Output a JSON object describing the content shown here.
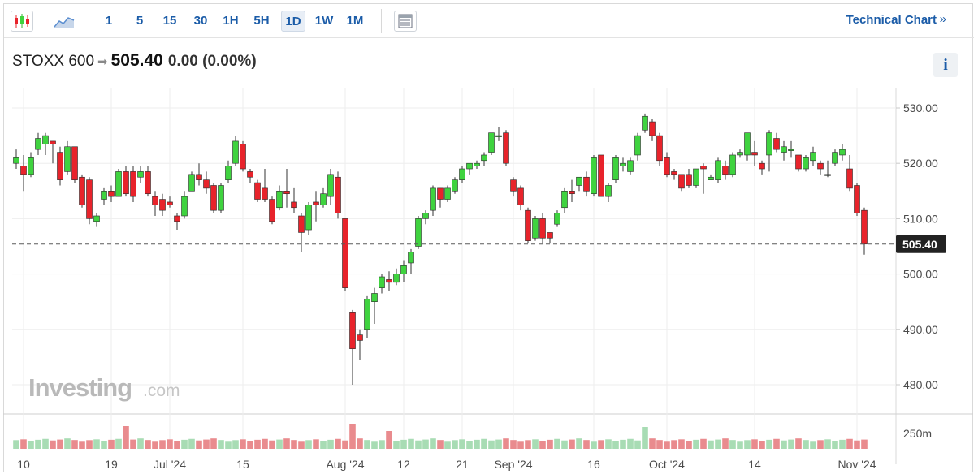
{
  "toolbar": {
    "icons": [
      "candlestick-icon",
      "area-chart-icon",
      "table-view-icon"
    ],
    "intervals": [
      "1",
      "5",
      "15",
      "30",
      "1H",
      "5H",
      "1D",
      "1W",
      "1M"
    ],
    "active_interval": "1D",
    "technical_chart_label": "Technical Chart",
    "technical_chart_arrow": "»"
  },
  "quote": {
    "name": "STOXX 600",
    "arrow": "➡",
    "price": "505.40",
    "change": "0.00 (0.00%)"
  },
  "info_label": "i",
  "watermark": {
    "brand": "Investing",
    "suffix": ".com"
  },
  "colors": {
    "up": "#3fd33f",
    "down": "#e8232b",
    "vol_up": "#a8dcb4",
    "vol_down": "#e98b8e"
  },
  "chart_data": {
    "type": "candlestick",
    "y_axis": {
      "ticks": [
        "530.00",
        "520.00",
        "510.00",
        "500.00",
        "490.00",
        "480.00"
      ],
      "range": [
        477,
        533
      ]
    },
    "last_price_label": "505.40",
    "last_price": 505.4,
    "volume_label": "250m",
    "x_labels": [
      "10",
      "19",
      "Jul '24",
      "15",
      "Aug '24",
      "12",
      "21",
      "Sep '24",
      "16",
      "Oct '24",
      "14",
      "Nov '24"
    ],
    "x_label_candle_index": [
      1,
      13,
      21,
      31,
      45,
      53,
      61,
      68,
      79,
      89,
      101,
      115
    ],
    "candles": [
      [
        520.0,
        521.0,
        522.5,
        519.0
      ],
      [
        519.5,
        518.0,
        521.5,
        515.0
      ],
      [
        518.0,
        521.0,
        522.0,
        517.5
      ],
      [
        522.5,
        524.5,
        525.5,
        521.5
      ],
      [
        523.5,
        525.0,
        525.5,
        521.5
      ],
      [
        524.0,
        523.5,
        524.0,
        520.0
      ],
      [
        522.0,
        517.0,
        523.0,
        516.0
      ],
      [
        518.5,
        523.0,
        524.0,
        518.0
      ],
      [
        523.0,
        517.0,
        523.0,
        516.5
      ],
      [
        517.5,
        512.5,
        518.0,
        512.0
      ],
      [
        517.0,
        510.0,
        517.5,
        509.0
      ],
      [
        509.5,
        510.5,
        511.0,
        508.5
      ],
      [
        513.5,
        515.0,
        515.5,
        512.5
      ],
      [
        515.0,
        514.0,
        516.0,
        513.0
      ],
      [
        514.0,
        518.5,
        519.0,
        514.0
      ],
      [
        518.5,
        514.5,
        519.5,
        514.0
      ],
      [
        518.5,
        514.0,
        519.5,
        513.0
      ],
      [
        517.5,
        518.5,
        519.5,
        516.5
      ],
      [
        518.5,
        514.5,
        519.5,
        514.0
      ],
      [
        514.0,
        512.5,
        515.0,
        510.5
      ],
      [
        513.5,
        511.5,
        514.5,
        510.5
      ],
      [
        513.0,
        512.5,
        514.0,
        512.0
      ],
      [
        510.5,
        509.5,
        511.0,
        508.0
      ],
      [
        510.5,
        514.0,
        515.0,
        510.0
      ],
      [
        515.0,
        518.0,
        518.5,
        515.0
      ],
      [
        518.0,
        517.0,
        520.0,
        516.0
      ],
      [
        517.0,
        515.5,
        518.5,
        514.5
      ],
      [
        516.0,
        511.5,
        516.5,
        511.0
      ],
      [
        511.5,
        516.0,
        516.5,
        511.0
      ],
      [
        517.0,
        519.5,
        520.5,
        516.5
      ],
      [
        520.0,
        524.0,
        525.0,
        519.5
      ],
      [
        523.5,
        519.0,
        524.0,
        518.5
      ],
      [
        518.5,
        517.5,
        519.0,
        516.5
      ],
      [
        516.5,
        513.5,
        517.0,
        513.0
      ],
      [
        515.5,
        513.5,
        519.0,
        513.0
      ],
      [
        513.5,
        509.5,
        514.0,
        509.0
      ],
      [
        512.0,
        515.0,
        516.0,
        511.5
      ],
      [
        515.0,
        514.5,
        519.0,
        512.0
      ],
      [
        513.0,
        512.0,
        515.5,
        511.0
      ],
      [
        510.5,
        507.5,
        511.0,
        504.0
      ],
      [
        508.0,
        512.5,
        513.0,
        507.0
      ],
      [
        513.0,
        512.5,
        515.0,
        509.5
      ],
      [
        512.5,
        514.5,
        515.5,
        512.0
      ],
      [
        514.0,
        518.0,
        519.0,
        512.5
      ],
      [
        517.5,
        511.0,
        518.5,
        510.0
      ],
      [
        510.0,
        497.5,
        510.0,
        497.0
      ],
      [
        493.0,
        486.5,
        493.5,
        480.0
      ],
      [
        489.0,
        488.0,
        490.0,
        484.5
      ],
      [
        490.0,
        495.5,
        496.0,
        488.5
      ],
      [
        495.0,
        496.5,
        497.5,
        491.0
      ],
      [
        497.5,
        499.5,
        500.0,
        496.5
      ],
      [
        499.0,
        498.5,
        500.5,
        497.0
      ],
      [
        498.5,
        500.0,
        501.0,
        498.0
      ],
      [
        500.0,
        501.5,
        502.5,
        498.5
      ],
      [
        502.0,
        504.0,
        504.5,
        500.0
      ],
      [
        505.0,
        510.0,
        510.5,
        504.5
      ],
      [
        510.0,
        511.0,
        511.5,
        509.0
      ],
      [
        511.5,
        515.5,
        516.0,
        510.5
      ],
      [
        515.5,
        513.5,
        515.5,
        512.0
      ],
      [
        513.5,
        515.5,
        516.0,
        513.0
      ],
      [
        515.0,
        517.0,
        517.5,
        514.5
      ],
      [
        517.0,
        519.0,
        519.5,
        516.5
      ],
      [
        519.0,
        520.0,
        520.0,
        518.0
      ],
      [
        519.5,
        520.0,
        520.5,
        519.0
      ],
      [
        520.5,
        521.5,
        522.0,
        519.5
      ],
      [
        522.0,
        525.5,
        525.5,
        521.5
      ],
      [
        525.0,
        525.0,
        526.5,
        524.0
      ],
      [
        525.5,
        520.0,
        526.0,
        519.5
      ],
      [
        517.0,
        515.0,
        517.5,
        514.0
      ],
      [
        515.5,
        512.5,
        516.0,
        511.5
      ],
      [
        511.5,
        506.0,
        512.0,
        505.5
      ],
      [
        506.5,
        510.0,
        510.5,
        506.0
      ],
      [
        510.0,
        506.5,
        511.0,
        505.5
      ],
      [
        507.5,
        506.5,
        507.5,
        505.5
      ],
      [
        509.0,
        511.0,
        511.5,
        508.5
      ],
      [
        512.0,
        515.0,
        515.5,
        511.0
      ],
      [
        515.0,
        514.5,
        517.0,
        513.0
      ],
      [
        516.0,
        517.5,
        517.5,
        515.0
      ],
      [
        517.5,
        515.0,
        518.5,
        514.0
      ],
      [
        514.5,
        521.0,
        521.5,
        514.0
      ],
      [
        521.5,
        514.0,
        521.5,
        514.0
      ],
      [
        514.0,
        516.0,
        516.5,
        513.0
      ],
      [
        517.0,
        521.0,
        521.5,
        516.5
      ],
      [
        519.5,
        520.0,
        521.0,
        518.5
      ],
      [
        518.5,
        520.5,
        521.0,
        518.0
      ],
      [
        521.5,
        525.0,
        525.5,
        520.5
      ],
      [
        526.0,
        528.5,
        529.0,
        525.5
      ],
      [
        527.5,
        525.0,
        528.0,
        524.0
      ],
      [
        525.0,
        520.5,
        525.5,
        519.5
      ],
      [
        521.0,
        518.0,
        522.0,
        517.5
      ],
      [
        518.5,
        518.0,
        519.0,
        517.0
      ],
      [
        518.0,
        515.5,
        518.0,
        515.0
      ],
      [
        518.0,
        516.0,
        519.0,
        515.5
      ],
      [
        516.0,
        519.0,
        519.0,
        515.5
      ],
      [
        519.5,
        519.0,
        520.0,
        514.5
      ],
      [
        517.0,
        517.5,
        518.0,
        517.0
      ],
      [
        517.0,
        520.5,
        521.0,
        516.5
      ],
      [
        519.5,
        518.0,
        520.5,
        517.0
      ],
      [
        518.0,
        521.5,
        522.0,
        517.5
      ],
      [
        521.5,
        522.0,
        522.5,
        521.0
      ],
      [
        521.5,
        525.5,
        525.5,
        520.5
      ],
      [
        522.0,
        521.5,
        524.0,
        519.5
      ],
      [
        520.0,
        519.0,
        520.5,
        518.0
      ],
      [
        521.5,
        525.5,
        526.0,
        518.5
      ],
      [
        524.5,
        522.5,
        525.5,
        522.0
      ],
      [
        522.0,
        523.0,
        524.0,
        520.5
      ],
      [
        522.5,
        522.5,
        524.0,
        521.0
      ],
      [
        521.5,
        519.0,
        521.5,
        518.5
      ],
      [
        519.0,
        521.0,
        521.5,
        518.5
      ],
      [
        520.5,
        522.0,
        523.0,
        519.5
      ],
      [
        520.0,
        519.0,
        520.5,
        518.0
      ],
      [
        518.0,
        518.0,
        520.5,
        517.5
      ],
      [
        520.0,
        522.0,
        522.5,
        519.5
      ],
      [
        521.5,
        522.5,
        523.5,
        520.5
      ],
      [
        519.0,
        515.5,
        521.5,
        515.0
      ],
      [
        516.0,
        511.0,
        516.5,
        510.5
      ],
      [
        511.5,
        505.4,
        512.0,
        503.5
      ]
    ]
  }
}
